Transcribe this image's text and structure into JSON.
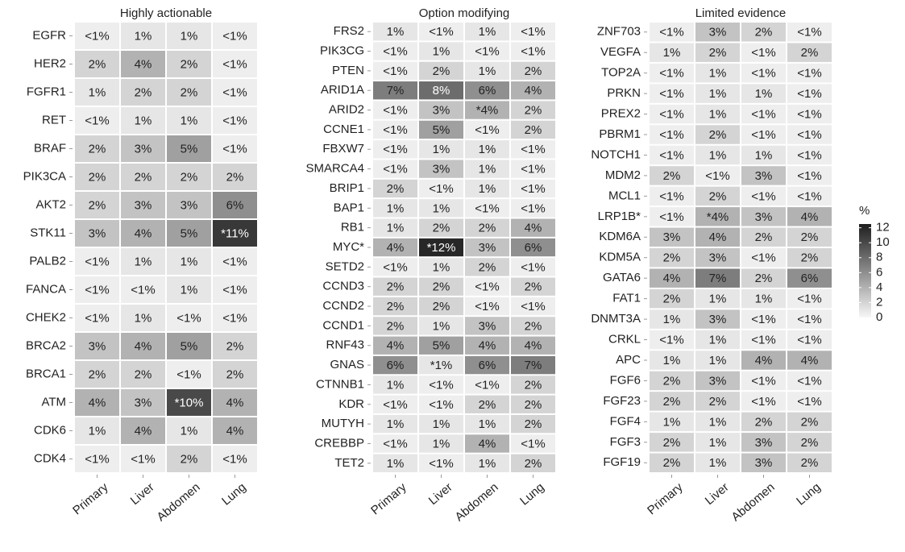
{
  "chart_data": [
    {
      "type": "heatmap",
      "title": "Highly actionable",
      "categories": [
        "Primary",
        "Liver",
        "Abdomen",
        "Lung"
      ],
      "rows": [
        "EGFR",
        "HER2",
        "FGFR1",
        "RET",
        "BRAF",
        "PIK3CA",
        "AKT2",
        "STK11",
        "PALB2",
        "FANCA",
        "CHEK2",
        "BRCA2",
        "BRCA1",
        "ATM",
        "CDK6",
        "CDK4"
      ],
      "values": [
        [
          0.5,
          1,
          1,
          0.5
        ],
        [
          2,
          4,
          2,
          0.5
        ],
        [
          1,
          2,
          2,
          0.5
        ],
        [
          0.5,
          1,
          1,
          0.5
        ],
        [
          2,
          3,
          5,
          0.5
        ],
        [
          2,
          2,
          2,
          2
        ],
        [
          2,
          3,
          3,
          6
        ],
        [
          3,
          4,
          5,
          11
        ],
        [
          0.5,
          1,
          1,
          0.5
        ],
        [
          0.5,
          0.5,
          1,
          0.5
        ],
        [
          0.5,
          1,
          0.5,
          0.5
        ],
        [
          3,
          4,
          5,
          2
        ],
        [
          2,
          2,
          0.5,
          2
        ],
        [
          4,
          3,
          10,
          4
        ],
        [
          1,
          4,
          1,
          4
        ],
        [
          0.5,
          0.5,
          2,
          0.5
        ]
      ],
      "value_labels": [
        [
          "<1%",
          "1%",
          "1%",
          "<1%"
        ],
        [
          "2%",
          "4%",
          "2%",
          "<1%"
        ],
        [
          "1%",
          "2%",
          "2%",
          "<1%"
        ],
        [
          "<1%",
          "1%",
          "1%",
          "<1%"
        ],
        [
          "2%",
          "3%",
          "5%",
          "<1%"
        ],
        [
          "2%",
          "2%",
          "2%",
          "2%"
        ],
        [
          "2%",
          "3%",
          "3%",
          "6%"
        ],
        [
          "3%",
          "4%",
          "5%",
          "*11%"
        ],
        [
          "<1%",
          "1%",
          "1%",
          "<1%"
        ],
        [
          "<1%",
          "<1%",
          "1%",
          "<1%"
        ],
        [
          "<1%",
          "1%",
          "<1%",
          "<1%"
        ],
        [
          "3%",
          "4%",
          "5%",
          "2%"
        ],
        [
          "2%",
          "2%",
          "<1%",
          "2%"
        ],
        [
          "4%",
          "3%",
          "*10%",
          "4%"
        ],
        [
          "1%",
          "4%",
          "1%",
          "4%"
        ],
        [
          "<1%",
          "<1%",
          "2%",
          "<1%"
        ]
      ]
    },
    {
      "type": "heatmap",
      "title": "Option modifying",
      "categories": [
        "Primary",
        "Liver",
        "Abdomen",
        "Lung"
      ],
      "rows": [
        "FRS2",
        "PIK3CG",
        "PTEN",
        "ARID1A",
        "ARID2",
        "CCNE1",
        "FBXW7",
        "SMARCA4",
        "BRIP1",
        "BAP1",
        "RB1",
        "MYC*",
        "SETD2",
        "CCND3",
        "CCND2",
        "CCND1",
        "RNF43",
        "GNAS",
        "CTNNB1",
        "KDR",
        "MUTYH",
        "CREBBP",
        "TET2"
      ],
      "values": [
        [
          1,
          0.5,
          1,
          0.5
        ],
        [
          0.5,
          1,
          0.5,
          0.5
        ],
        [
          0.5,
          2,
          1,
          2
        ],
        [
          7,
          8,
          6,
          4
        ],
        [
          0.5,
          3,
          4,
          2
        ],
        [
          0.5,
          5,
          0.5,
          2
        ],
        [
          0.5,
          1,
          1,
          0.5
        ],
        [
          0.5,
          3,
          1,
          0.5
        ],
        [
          2,
          0.5,
          1,
          0.5
        ],
        [
          1,
          1,
          0.5,
          0.5
        ],
        [
          1,
          2,
          2,
          4
        ],
        [
          4,
          12,
          3,
          6
        ],
        [
          0.5,
          1,
          2,
          0.5
        ],
        [
          2,
          2,
          0.5,
          2
        ],
        [
          2,
          2,
          0.5,
          0.5
        ],
        [
          2,
          1,
          3,
          2
        ],
        [
          4,
          5,
          4,
          4
        ],
        [
          6,
          1,
          6,
          7
        ],
        [
          1,
          0.5,
          0.5,
          2
        ],
        [
          0.5,
          0.5,
          2,
          2
        ],
        [
          1,
          1,
          1,
          2
        ],
        [
          0.5,
          1,
          4,
          0.5
        ],
        [
          1,
          0.5,
          1,
          2
        ]
      ],
      "value_labels": [
        [
          "1%",
          "<1%",
          "1%",
          "<1%"
        ],
        [
          "<1%",
          "1%",
          "<1%",
          "<1%"
        ],
        [
          "<1%",
          "2%",
          "1%",
          "2%"
        ],
        [
          "7%",
          "8%",
          "6%",
          "4%"
        ],
        [
          "<1%",
          "3%",
          "*4%",
          "2%"
        ],
        [
          "<1%",
          "5%",
          "<1%",
          "2%"
        ],
        [
          "<1%",
          "1%",
          "1%",
          "<1%"
        ],
        [
          "<1%",
          "3%",
          "1%",
          "<1%"
        ],
        [
          "2%",
          "<1%",
          "1%",
          "<1%"
        ],
        [
          "1%",
          "1%",
          "<1%",
          "<1%"
        ],
        [
          "1%",
          "2%",
          "2%",
          "4%"
        ],
        [
          "4%",
          "*12%",
          "3%",
          "6%"
        ],
        [
          "<1%",
          "1%",
          "2%",
          "<1%"
        ],
        [
          "2%",
          "2%",
          "<1%",
          "2%"
        ],
        [
          "2%",
          "2%",
          "<1%",
          "<1%"
        ],
        [
          "2%",
          "1%",
          "3%",
          "2%"
        ],
        [
          "4%",
          "5%",
          "4%",
          "4%"
        ],
        [
          "6%",
          "*1%",
          "6%",
          "7%"
        ],
        [
          "1%",
          "<1%",
          "<1%",
          "2%"
        ],
        [
          "<1%",
          "<1%",
          "2%",
          "2%"
        ],
        [
          "1%",
          "1%",
          "1%",
          "2%"
        ],
        [
          "<1%",
          "1%",
          "4%",
          "<1%"
        ],
        [
          "1%",
          "<1%",
          "1%",
          "2%"
        ]
      ]
    },
    {
      "type": "heatmap",
      "title": "Limited evidence",
      "categories": [
        "Primary",
        "Liver",
        "Abdomen",
        "Lung"
      ],
      "rows": [
        "ZNF703",
        "VEGFA",
        "TOP2A",
        "PRKN",
        "PREX2",
        "PBRM1",
        "NOTCH1",
        "MDM2",
        "MCL1",
        "LRP1B*",
        "KDM6A",
        "KDM5A",
        "GATA6",
        "FAT1",
        "DNMT3A",
        "CRKL",
        "APC",
        "FGF6",
        "FGF23",
        "FGF4",
        "FGF3",
        "FGF19"
      ],
      "values": [
        [
          0.5,
          3,
          2,
          0.5
        ],
        [
          1,
          2,
          0.5,
          2
        ],
        [
          0.5,
          1,
          0.5,
          0.5
        ],
        [
          0.5,
          1,
          1,
          0.5
        ],
        [
          0.5,
          1,
          0.5,
          0.5
        ],
        [
          0.5,
          2,
          0.5,
          0.5
        ],
        [
          0.5,
          1,
          1,
          0.5
        ],
        [
          2,
          0.5,
          3,
          0.5
        ],
        [
          0.5,
          2,
          0.5,
          0.5
        ],
        [
          0.5,
          4,
          3,
          4
        ],
        [
          3,
          4,
          2,
          2
        ],
        [
          2,
          3,
          0.5,
          2
        ],
        [
          4,
          7,
          2,
          6
        ],
        [
          2,
          1,
          1,
          0.5
        ],
        [
          1,
          3,
          0.5,
          0.5
        ],
        [
          0.5,
          1,
          0.5,
          0.5
        ],
        [
          1,
          1,
          4,
          4
        ],
        [
          2,
          3,
          0.5,
          0.5
        ],
        [
          2,
          2,
          0.5,
          0.5
        ],
        [
          1,
          1,
          2,
          2
        ],
        [
          2,
          1,
          3,
          2
        ],
        [
          2,
          1,
          3,
          2
        ]
      ],
      "value_labels": [
        [
          "<1%",
          "3%",
          "2%",
          "<1%"
        ],
        [
          "1%",
          "2%",
          "<1%",
          "2%"
        ],
        [
          "<1%",
          "1%",
          "<1%",
          "<1%"
        ],
        [
          "<1%",
          "1%",
          "1%",
          "<1%"
        ],
        [
          "<1%",
          "1%",
          "<1%",
          "<1%"
        ],
        [
          "<1%",
          "2%",
          "<1%",
          "<1%"
        ],
        [
          "<1%",
          "1%",
          "1%",
          "<1%"
        ],
        [
          "2%",
          "<1%",
          "3%",
          "<1%"
        ],
        [
          "<1%",
          "2%",
          "<1%",
          "<1%"
        ],
        [
          "<1%",
          "*4%",
          "3%",
          "4%"
        ],
        [
          "3%",
          "4%",
          "2%",
          "2%"
        ],
        [
          "2%",
          "3%",
          "<1%",
          "2%"
        ],
        [
          "4%",
          "7%",
          "2%",
          "6%"
        ],
        [
          "2%",
          "1%",
          "1%",
          "<1%"
        ],
        [
          "1%",
          "3%",
          "<1%",
          "<1%"
        ],
        [
          "<1%",
          "1%",
          "<1%",
          "<1%"
        ],
        [
          "1%",
          "1%",
          "4%",
          "4%"
        ],
        [
          "2%",
          "3%",
          "<1%",
          "<1%"
        ],
        [
          "2%",
          "2%",
          "<1%",
          "<1%"
        ],
        [
          "1%",
          "1%",
          "2%",
          "2%"
        ],
        [
          "2%",
          "1%",
          "3%",
          "2%"
        ],
        [
          "2%",
          "1%",
          "3%",
          "2%"
        ]
      ],
      "colorbar": {
        "title": "%",
        "lim": [
          0,
          12.5
        ],
        "ticks": [
          0,
          2,
          4,
          6,
          8,
          10,
          12
        ],
        "colors": [
          "#f7f7f7",
          "#1e1e1e"
        ]
      }
    }
  ]
}
